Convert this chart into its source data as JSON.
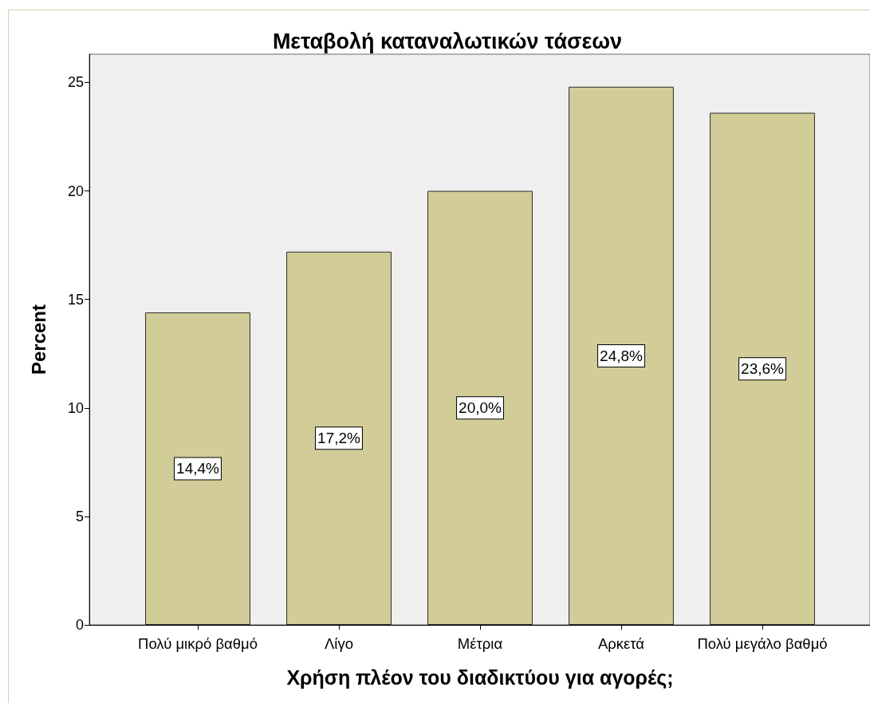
{
  "chart_data": {
    "type": "bar",
    "title": "Μεταβολή καταναλωτικών τάσεων",
    "xlabel": "Χρήση πλέον του διαδικτύου για αγορές;",
    "ylabel": "Percent",
    "categories": [
      "Πολύ μικρό βαθμό",
      "Λίγο",
      "Μέτρια",
      "Αρκετά",
      "Πολύ μεγάλο βαθμό"
    ],
    "values": [
      14.4,
      17.2,
      20.0,
      24.8,
      23.6
    ],
    "value_labels": [
      "14,4%",
      "17,2%",
      "20,0%",
      "24,8%",
      "23,6%"
    ],
    "color": "#d2cd98",
    "ylim": [
      0,
      26.3
    ],
    "yticks": [
      0,
      5,
      10,
      15,
      20,
      25
    ]
  }
}
